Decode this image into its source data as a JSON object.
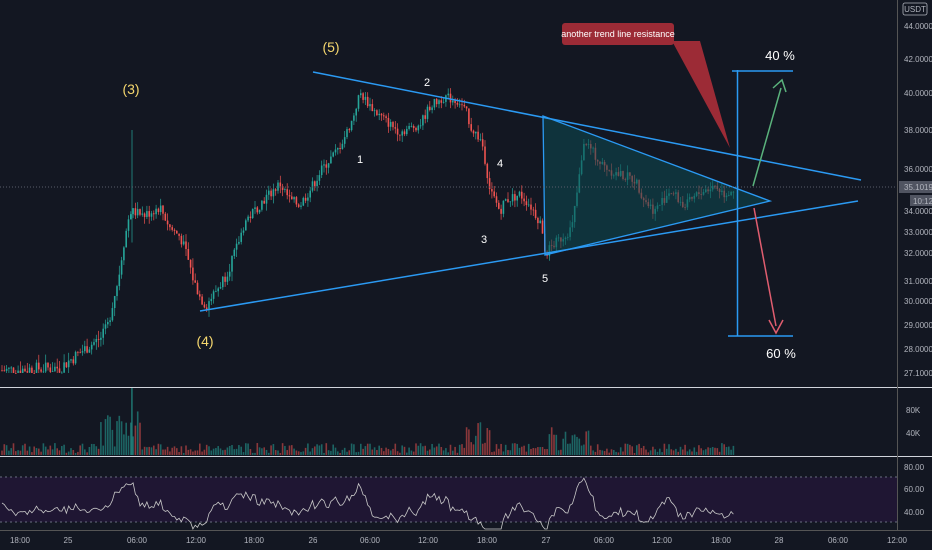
{
  "chart_data": {
    "type": "candlestick",
    "symbol_unit": "USDT",
    "price_axis": {
      "ticks": [
        "44.0000",
        "42.0000",
        "40.0000",
        "38.0000",
        "36.0000",
        "35.1019",
        "34.0000",
        "33.0000",
        "32.0000",
        "31.0000",
        "30.0000",
        "29.0000",
        "28.0000",
        "27.1000"
      ],
      "last_price": "35.1019",
      "countdown": "10:12"
    },
    "volume_axis": {
      "ticks": [
        "80K",
        "40K"
      ]
    },
    "rsi_axis": {
      "ticks": [
        "80.00",
        "60.00",
        "40.00"
      ]
    },
    "time_axis": {
      "ticks": [
        "18:00",
        "25",
        "06:00",
        "12:00",
        "18:00",
        "26",
        "06:00",
        "12:00",
        "18:00",
        "27",
        "06:00",
        "12:00",
        "18:00",
        "28",
        "06:00",
        "12:00"
      ]
    },
    "wave_labels": {
      "major": [
        "(3)",
        "(5)",
        "(4)"
      ],
      "minor": [
        "1",
        "2",
        "3",
        "4",
        "5"
      ]
    },
    "annotations": {
      "callout": "another trend line resistance",
      "target_up": "40 %",
      "target_down": "60 %"
    },
    "price_path": [
      27.2,
      27.3,
      28.5,
      29.0,
      31.0,
      34.0,
      33.8,
      34.2,
      33.2,
      32.8,
      31.5,
      30.2,
      29.8,
      30.8,
      32.0,
      33.5,
      34.6,
      35.3,
      34.5,
      34.3,
      35.0,
      36.0,
      37.0,
      37.8,
      38.5,
      40.0,
      39.0,
      38.3,
      37.9,
      38.3,
      39.3,
      39.8,
      39.5,
      38.8,
      38.2,
      37.4,
      35.0,
      34.0,
      34.5,
      34.8,
      34.3,
      33.5,
      32.0,
      33.2,
      37.5,
      36.3,
      35.8,
      35.5,
      34.5,
      34.0,
      35.0,
      34.2,
      34.9,
      35.2,
      34.8,
      35.1
    ]
  },
  "colors": {
    "background": "#131722",
    "up": "#26a69a",
    "down": "#ef5350",
    "trendline": "#2b9af3",
    "triangle_fill": "#0c4a52",
    "rsi_line": "#c8c8c8",
    "rsi_band": "#1f1633",
    "arrow_up": "#5ab27c",
    "arrow_down": "#e05d6f",
    "callout": "#9c2b36",
    "wave_major": "#f5d76e",
    "price_badge": "#505461"
  }
}
